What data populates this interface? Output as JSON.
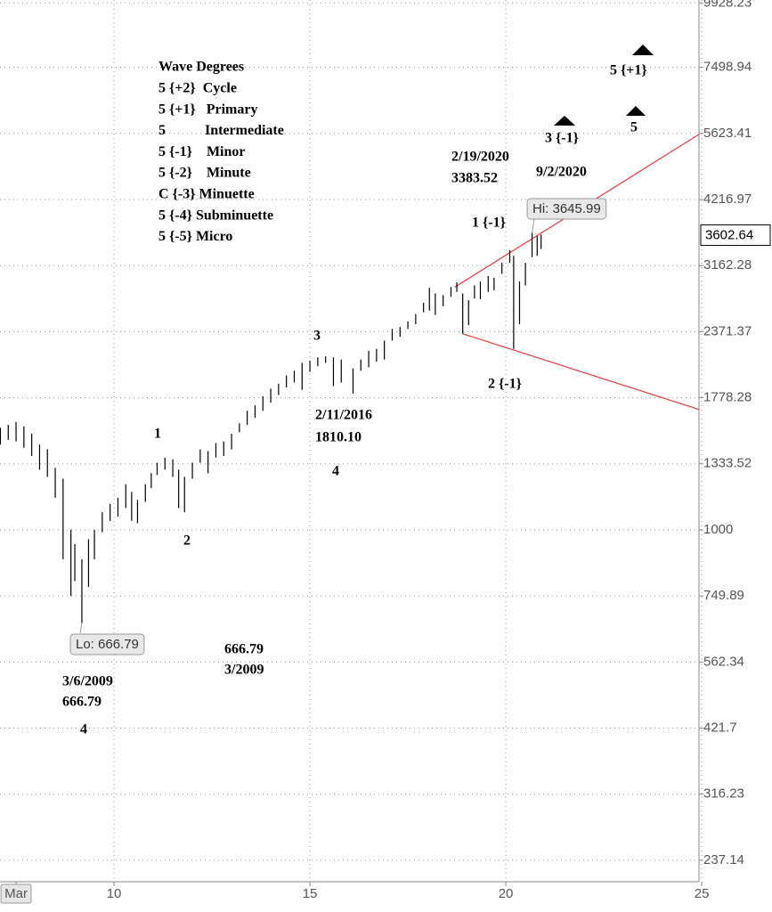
{
  "chart_data": {
    "type": "ohlc",
    "log_scale": true,
    "grid": true,
    "color": "#000000",
    "x": [
      2007.1,
      2007.3,
      2007.5,
      2007.7,
      2007.9,
      2008.1,
      2008.3,
      2008.5,
      2008.7,
      2008.9,
      2009.0,
      2009.18,
      2009.35,
      2009.5,
      2009.7,
      2009.9,
      2010.1,
      2010.3,
      2010.45,
      2010.6,
      2010.8,
      2010.95,
      2011.1,
      2011.3,
      2011.5,
      2011.65,
      2011.8,
      2012.0,
      2012.2,
      2012.4,
      2012.6,
      2012.8,
      2013.0,
      2013.2,
      2013.4,
      2013.6,
      2013.8,
      2014.0,
      2014.2,
      2014.4,
      2014.6,
      2014.8,
      2015.0,
      2015.2,
      2015.4,
      2015.6,
      2015.8,
      2016.1,
      2016.3,
      2016.5,
      2016.7,
      2016.9,
      2017.1,
      2017.3,
      2017.5,
      2017.7,
      2017.9,
      2018.05,
      2018.2,
      2018.4,
      2018.6,
      2018.75,
      2018.9,
      2019.05,
      2019.2,
      2019.35,
      2019.55,
      2019.7,
      2019.9,
      2020.1,
      2020.2,
      2020.35,
      2020.5,
      2020.67,
      2020.8,
      2020.9
    ],
    "high": [
      1560,
      1580,
      1600,
      1570,
      1520,
      1450,
      1420,
      1310,
      1250,
      1000,
      940,
      880,
      960,
      1000,
      1080,
      1120,
      1150,
      1220,
      1180,
      1140,
      1220,
      1280,
      1340,
      1370,
      1360,
      1300,
      1260,
      1340,
      1420,
      1410,
      1460,
      1470,
      1520,
      1590,
      1680,
      1720,
      1790,
      1850,
      1890,
      1960,
      2000,
      2070,
      2090,
      2120,
      2130,
      2120,
      2100,
      2020,
      2100,
      2180,
      2200,
      2280,
      2400,
      2420,
      2480,
      2560,
      2690,
      2870,
      2800,
      2780,
      2880,
      2940,
      2800,
      2720,
      2900,
      2950,
      3020,
      3000,
      3200,
      3383.52,
      3300,
      2950,
      3200,
      3645.99,
      3600,
      3620
    ],
    "low": [
      1450,
      1480,
      1470,
      1430,
      1380,
      1300,
      1260,
      1150,
      880,
      750,
      800,
      666.79,
      780,
      880,
      990,
      1040,
      1060,
      1100,
      1040,
      1030,
      1130,
      1200,
      1270,
      1300,
      1260,
      1100,
      1080,
      1250,
      1340,
      1280,
      1370,
      1380,
      1420,
      1530,
      1580,
      1630,
      1680,
      1740,
      1800,
      1860,
      1900,
      1840,
      1990,
      2040,
      2070,
      1870,
      1900,
      1810.1,
      2000,
      2030,
      2080,
      2100,
      2280,
      2320,
      2400,
      2450,
      2580,
      2600,
      2550,
      2650,
      2760,
      2820,
      2350,
      2440,
      2740,
      2730,
      2820,
      2840,
      3050,
      3200,
      2200,
      2450,
      2900,
      3280,
      3300,
      3400
    ],
    "xlim": [
      2007.09,
      2024.93
    ],
    "ylim": [
      216,
      10055
    ],
    "xticks": [
      {
        "value": 2007.5,
        "label": "Mar"
      },
      {
        "value": 2010,
        "label": "10"
      },
      {
        "value": 2015,
        "label": "15"
      },
      {
        "value": 2020,
        "label": "20"
      },
      {
        "value": 2025,
        "label": "25"
      }
    ],
    "yticks": [
      237.14,
      316.23,
      421.7,
      562.34,
      749.89,
      1000,
      1333.52,
      1778.28,
      2371.37,
      3162.28,
      4216.97,
      5623.41,
      7498.94,
      9928.23
    ],
    "last_price": 3602.64,
    "hi_label": "Hi: 3645.99",
    "lo_label": "Lo: 666.79",
    "trendlines": [
      {
        "color": "#e8474a",
        "x": [
          2018.7,
          2024.93
        ],
        "y": [
          2880,
          5600
        ]
      },
      {
        "color": "#e8474a",
        "x": [
          2018.9,
          2024.93
        ],
        "y": [
          2350,
          1690
        ]
      }
    ],
    "legend_lines": [
      "Wave Degrees",
      "5 {+2}  Cycle",
      "5 {+1}   Primary",
      "5           Intermediate",
      "5 {-1}    Minor",
      "5 {-2}    Minute",
      "C {-3} Minuette",
      "5 {-4} Subminuette",
      "5 {-5} Micro"
    ],
    "annotations": [
      "5 {+1}",
      "3 {-1}",
      "5",
      "2/19/2020",
      "3383.52",
      "9/2/2020",
      "1 {-1}",
      "3",
      "2 {-1}",
      "2/11/2016",
      "1810.10",
      "4",
      "1",
      "2",
      "666.79",
      "3/2009",
      "3/6/2009",
      "666.79",
      "4"
    ]
  }
}
